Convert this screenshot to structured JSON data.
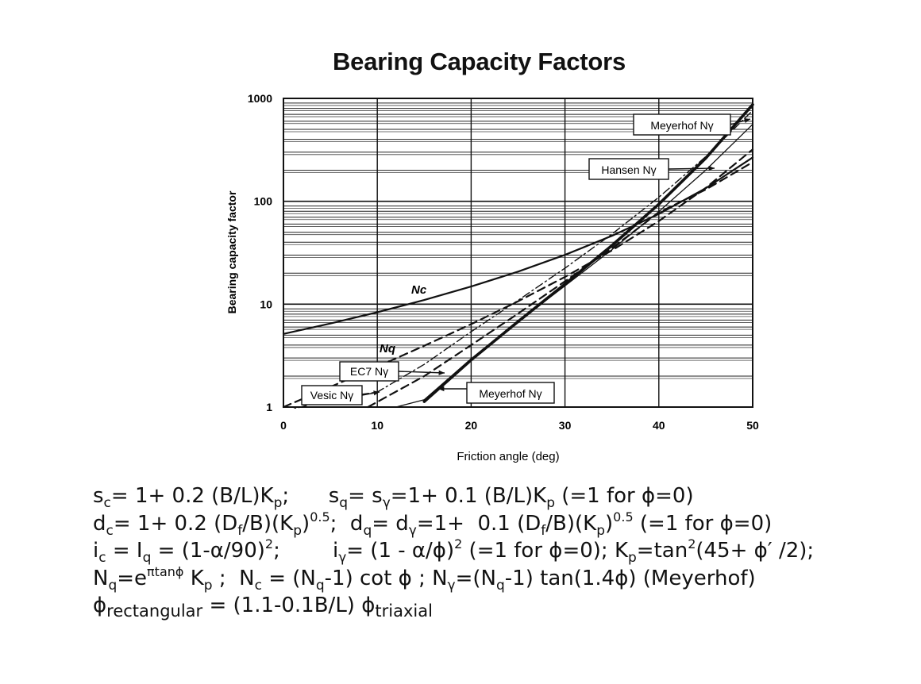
{
  "chart_data": {
    "type": "line",
    "title": "Bearing Capacity Factors",
    "xlabel": "Friction angle (deg)",
    "ylabel": "Bearing capacity factor",
    "xlim": [
      0,
      50
    ],
    "ylim": [
      1,
      1000
    ],
    "yscale": "log",
    "x_ticks": [
      "0",
      "10",
      "20",
      "30",
      "40",
      "50"
    ],
    "y_ticks": [
      "1",
      "10",
      "100",
      "1000"
    ],
    "grid": true,
    "series": [
      {
        "name": "Nc",
        "style": "solid",
        "x": [
          0,
          5,
          10,
          15,
          20,
          25,
          30,
          35,
          40,
          45,
          50
        ],
        "values": [
          5.14,
          6.49,
          8.35,
          10.98,
          14.83,
          20.72,
          30.14,
          46.12,
          75.31,
          133.88,
          266.89
        ]
      },
      {
        "name": "Nq",
        "style": "dashed",
        "x": [
          0,
          5,
          10,
          15,
          20,
          25,
          30,
          35,
          40,
          45,
          50
        ],
        "values": [
          1.0,
          1.57,
          2.47,
          3.94,
          6.4,
          10.66,
          18.4,
          33.3,
          64.2,
          134.9,
          319.1
        ]
      },
      {
        "name": "Meyerhof Nγ",
        "style": "thick",
        "x": [
          15,
          20,
          25,
          30,
          35,
          40,
          45,
          50
        ],
        "values": [
          1.13,
          2.87,
          6.77,
          15.67,
          37.15,
          93.69,
          262.74,
          870
        ]
      },
      {
        "name": "Hansen Nγ",
        "style": "thin",
        "x": [
          12,
          15,
          20,
          25,
          30,
          35,
          40,
          45,
          50
        ],
        "values": [
          1.0,
          1.18,
          2.95,
          6.76,
          15.07,
          33.92,
          79.54,
          200.81,
          560
        ]
      },
      {
        "name": "EC7 Nγ",
        "style": "dashed",
        "x": [
          9,
          15,
          20,
          25,
          30,
          35,
          40,
          45,
          50
        ],
        "values": [
          1.0,
          2.0,
          4.0,
          8.1,
          16.7,
          35.0,
          78.0,
          130.0,
          240.0
        ]
      },
      {
        "name": "Vesic Nγ",
        "style": "dash-dot",
        "x": [
          0,
          5,
          10,
          15,
          20,
          25,
          30,
          35,
          40,
          45,
          50
        ],
        "values": [
          0.9,
          1.2,
          1.4,
          2.6,
          5.4,
          10.9,
          22.4,
          48.0,
          109.4,
          271.8,
          762.9
        ]
      }
    ],
    "annotations": [
      "Meyerhof Nγ",
      "Hansen Nγ",
      "Nc",
      "Nq",
      "EC7 Nγ",
      "Vesic Nγ",
      "Meyerhof Nγ"
    ]
  },
  "equations": [
    "sc= 1+ 0.2 (B/L)Kp;       sq= sγ=1+ 0.1 (B/L)Kp (=1 for ϕ=0)",
    "dc= 1+ 0.2 (Df/B)(Kp)0.5;  dq= dγ=1+  0.1 (Df/B)(Kp)0.5 (=1 for ϕ=0)",
    "ic = Iq = (1-α/90)2;       iγ= (1 - α/ϕ)2 (=1 for ϕ=0); Kp=tan2(45+ ϕ' /2);",
    "Nq=eπtanϕ Kp ;  Nc = (Nq-1) cot ϕ ; Nγ=(Nq-1) tan(1.4ϕ) (Meyerhof)",
    "ϕ rectangular = (1.1-0.1B/L) ϕ triaxial"
  ]
}
